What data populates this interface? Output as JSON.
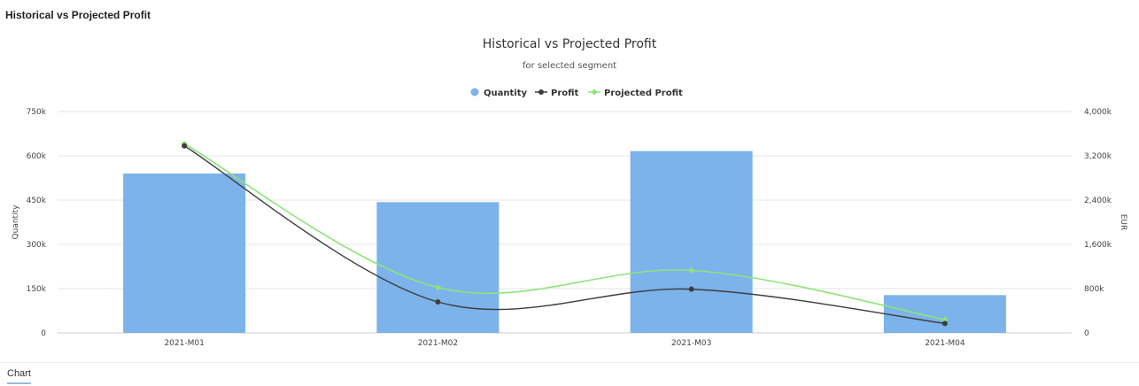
{
  "panel": {
    "title": "Historical vs Projected Profit"
  },
  "footer": {
    "tab_label": "Chart"
  },
  "colors": {
    "bar": "#7cb3ea",
    "profit": "#3d3d3d",
    "projected": "#8ee47a",
    "grid": "#e6e6e6"
  },
  "chart_data": {
    "type": "bar",
    "title": "Historical vs Projected Profit",
    "subtitle": "for selected segment",
    "categories": [
      "2021-M01",
      "2021-M02",
      "2021-M03",
      "2021-M04"
    ],
    "legend": {
      "position": "top-center",
      "items": [
        "Quantity",
        "Profit",
        "Projected Profit"
      ]
    },
    "y_left": {
      "label": "Quantity",
      "ticks": [
        "0",
        "150k",
        "300k",
        "450k",
        "600k",
        "750k"
      ],
      "ylim": [
        0,
        750000
      ]
    },
    "y_right": {
      "label": "EUR",
      "ticks": [
        "0",
        "800k",
        "1,600k",
        "2,400k",
        "3,200k",
        "4,000k"
      ],
      "ylim": [
        0,
        4000000
      ]
    },
    "grid": true,
    "series": [
      {
        "name": "Quantity",
        "type": "bar",
        "axis": "left",
        "values": [
          540000,
          443000,
          616000,
          128000
        ]
      },
      {
        "name": "Profit",
        "type": "spline",
        "axis": "right",
        "values": [
          3380000,
          560000,
          790000,
          170000
        ]
      },
      {
        "name": "Projected Profit",
        "type": "spline",
        "axis": "right",
        "values": [
          3420000,
          820000,
          1130000,
          240000
        ]
      }
    ]
  }
}
